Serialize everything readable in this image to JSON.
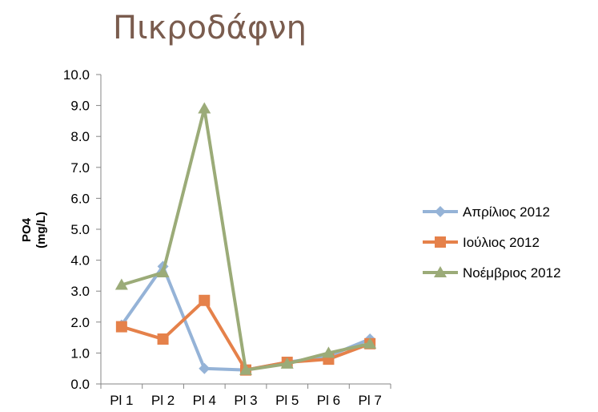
{
  "chart_data": {
    "type": "line",
    "title": "Πικροδάφνη",
    "xlabel": "",
    "ylabel": "PO4",
    "ylabel_unit": "(mg/L)",
    "categories": [
      "Pl 1",
      "Pl 2",
      "Pl 4",
      "Pl 3",
      "Pl 5",
      "Pl 6",
      "Pl 7"
    ],
    "y_ticks": [
      "0.0",
      "1.0",
      "2.0",
      "3.0",
      "4.0",
      "5.0",
      "6.0",
      "7.0",
      "8.0",
      "9.0",
      "10.0"
    ],
    "ylim": [
      0,
      10
    ],
    "grid": false,
    "legend_position": "right",
    "series": [
      {
        "name": "Απρίλιος 2012",
        "color": "#95b3d7",
        "marker": "diamond",
        "values": [
          1.9,
          3.8,
          0.5,
          0.45,
          0.7,
          0.9,
          1.45
        ]
      },
      {
        "name": "Ιούλιος 2012",
        "color": "#e5814a",
        "marker": "square",
        "values": [
          1.85,
          1.45,
          2.7,
          0.45,
          0.7,
          0.8,
          1.3
        ]
      },
      {
        "name": "Νοέμβριος 2012",
        "color": "#9bab78",
        "marker": "triangle",
        "values": [
          3.2,
          3.6,
          8.9,
          0.45,
          0.65,
          1.0,
          1.3
        ]
      }
    ]
  }
}
